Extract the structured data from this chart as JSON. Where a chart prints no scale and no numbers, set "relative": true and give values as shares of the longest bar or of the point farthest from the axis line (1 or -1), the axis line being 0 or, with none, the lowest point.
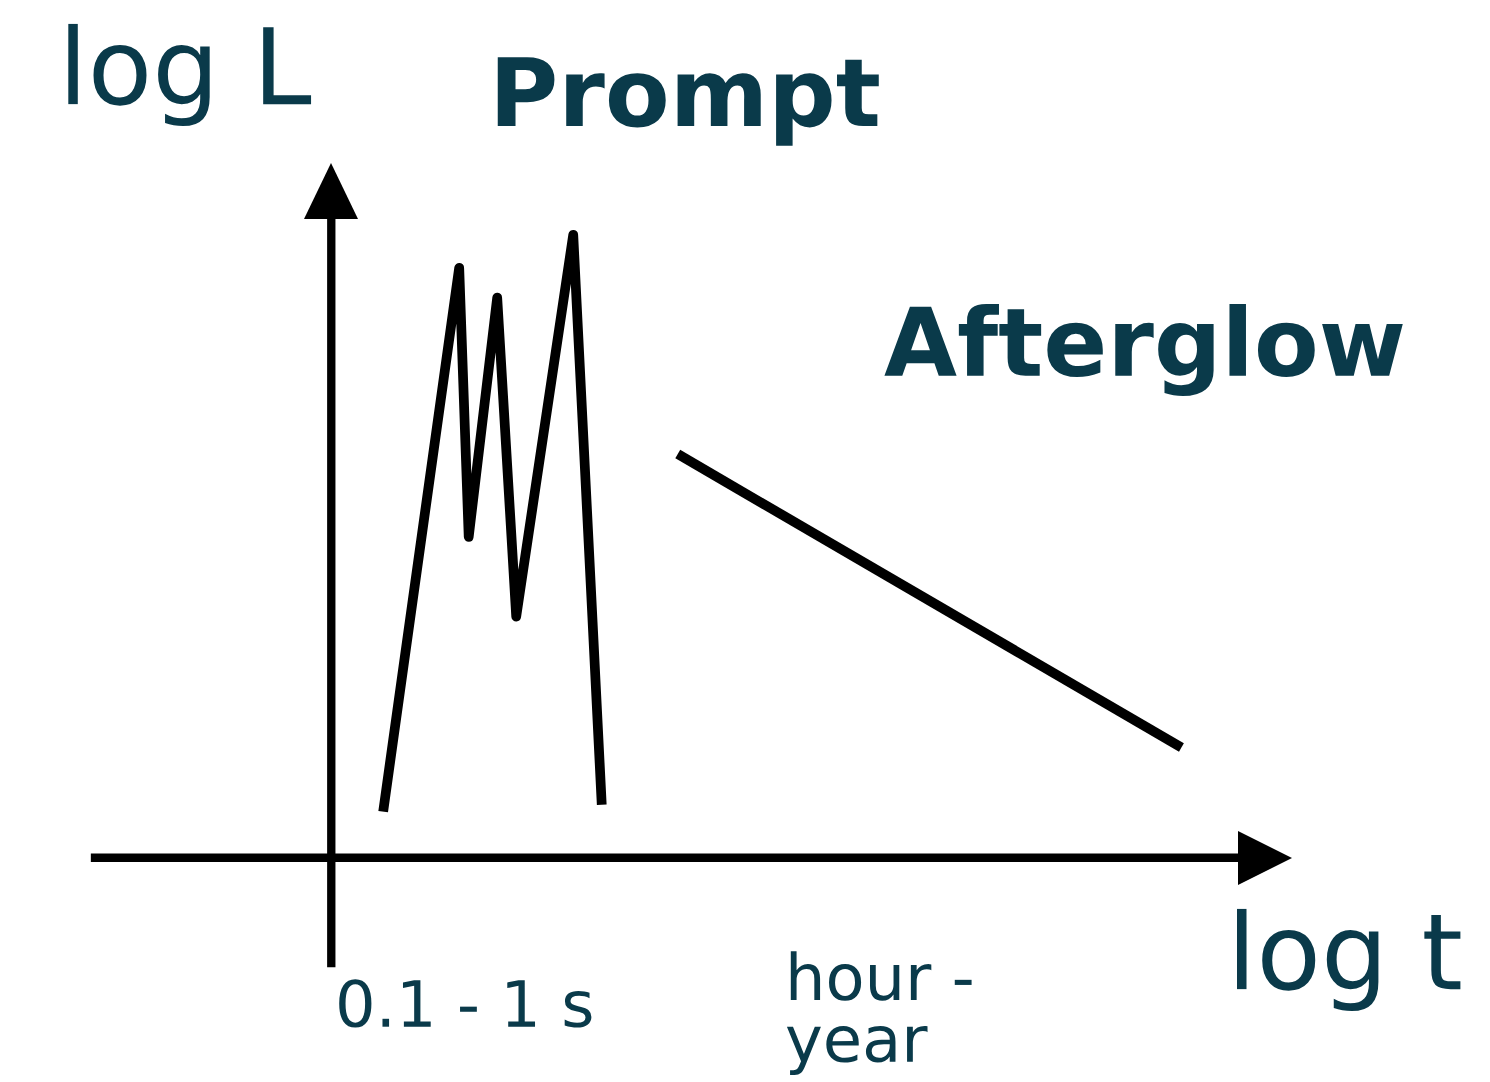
{
  "chart_data": {
    "type": "line",
    "relative": true,
    "xlabel": "log t",
    "ylabel": "log L",
    "categories": [
      null,
      null,
      null,
      null,
      null,
      null,
      null,
      null,
      null,
      null,
      null,
      null,
      null,
      null,
      null,
      null,
      null,
      null,
      null,
      null,
      null,
      null,
      null,
      null,
      null,
      null,
      null,
      null,
      null,
      null,
      null,
      null,
      null,
      null,
      null,
      null,
      null,
      null,
      null,
      null,
      null,
      null,
      null,
      null,
      null,
      null,
      null,
      null,
      null,
      null,
      null,
      null,
      null,
      null,
      null,
      null,
      null,
      null,
      null,
      null,
      null,
      null,
      null,
      null,
      null,
      null,
      null,
      null,
      null,
      null,
      null,
      null,
      null,
      null,
      null,
      null,
      null,
      null,
      null,
      null,
      null,
      null,
      null,
      null,
      null
    ],
    "annotations": [
      "0.1 - 1 s",
      "hour -\nyear"
    ],
    "legend": false,
    "grid": false,
    "marker": "none",
    "line_style": "solid",
    "series": [
      {
        "name": "Prompt",
        "color": "#000000",
        "values": [
          0.074,
          null,
          null,
          null,
          null,
          null,
          null,
          null,
          0.947,
          0.515,
          null,
          null,
          0.899,
          null,
          0.387,
          null,
          null,
          null,
          null,
          null,
          1.0,
          null,
          null,
          0.085,
          null,
          null,
          null,
          null,
          null,
          null,
          null,
          null,
          null,
          null,
          null,
          null,
          null,
          null,
          null,
          null,
          null,
          null,
          null,
          null,
          null,
          null,
          null,
          null,
          null,
          null,
          null,
          null,
          null,
          null,
          null,
          null,
          null,
          null,
          null,
          null,
          null,
          null,
          null,
          null,
          null,
          null,
          null,
          null,
          null,
          null,
          null,
          null,
          null,
          null,
          null,
          null,
          null,
          null,
          null,
          null,
          null,
          null,
          null,
          null,
          null
        ]
      },
      {
        "name": "Afterglow",
        "color": "#000000",
        "values": [
          null,
          null,
          null,
          null,
          null,
          null,
          null,
          null,
          null,
          null,
          null,
          null,
          null,
          null,
          null,
          null,
          null,
          null,
          null,
          null,
          null,
          null,
          null,
          null,
          null,
          null,
          null,
          null,
          null,
          null,
          null,
          0.648,
          null,
          null,
          null,
          null,
          null,
          null,
          null,
          null,
          null,
          null,
          null,
          null,
          null,
          null,
          null,
          null,
          null,
          null,
          null,
          null,
          null,
          null,
          null,
          null,
          null,
          null,
          null,
          null,
          null,
          null,
          null,
          null,
          null,
          null,
          null,
          null,
          null,
          null,
          null,
          null,
          null,
          null,
          null,
          null,
          null,
          null,
          null,
          null,
          null,
          null,
          null,
          null,
          0.177
        ]
      }
    ]
  }
}
